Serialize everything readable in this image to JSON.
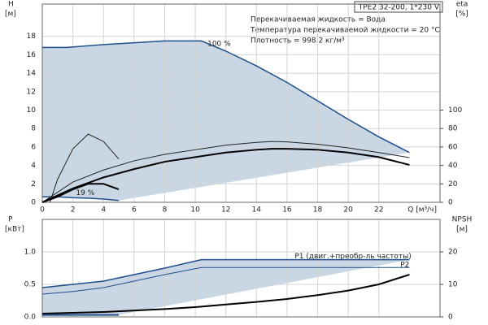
{
  "chart_data": [
    {
      "type": "line",
      "model": "TPE2 32-200, 1*230 V",
      "notes": [
        "Перекачиваемая жидкость = Вода",
        "Температура перекачиваемой жидкости = 20 °C",
        "Плотность = 998.2 кг/м³"
      ],
      "ylabel": "H",
      "yunit": "[м]",
      "y2label": "eta",
      "y2unit": "[%]",
      "xlabel": "Q [м³/ч]",
      "xlim": [
        0,
        26
      ],
      "xticks": [
        0,
        2,
        4,
        6,
        8,
        10,
        12,
        14,
        16,
        18,
        20,
        22
      ],
      "ylim": [
        0,
        21.5
      ],
      "yticks": [
        0,
        2,
        4,
        6,
        8,
        10,
        12,
        14,
        16,
        18
      ],
      "y2lim": [
        0,
        215
      ],
      "y2ticks": [
        0,
        20,
        40,
        60,
        80,
        100
      ],
      "grid": true,
      "fill": "#c9d6e3",
      "series": [
        {
          "name": "100 %",
          "color": "#1f4e8c",
          "line_width": 1.5,
          "x": [
            0,
            1.6,
            4,
            6,
            8,
            10.4,
            12,
            14,
            16,
            18,
            20,
            22,
            24
          ],
          "values": [
            16.8,
            16.8,
            17.1,
            17.3,
            17.5,
            17.5,
            16.4,
            14.8,
            13,
            11,
            9,
            7.1,
            5.4
          ]
        },
        {
          "name": "19 %",
          "color": "#1f4e8c",
          "line_width": 1.5,
          "x": [
            0,
            1,
            2,
            3,
            4,
            5
          ],
          "values": [
            0.6,
            0.6,
            0.5,
            0.45,
            0.35,
            0.2
          ]
        },
        {
          "color": "#222222",
          "line_width": 1,
          "axis": "y2",
          "x": [
            0,
            2,
            4,
            6,
            8,
            10,
            12,
            14,
            15,
            16,
            18,
            20,
            22,
            24
          ],
          "values": [
            0,
            22,
            35,
            45,
            52,
            57,
            62,
            65,
            66,
            65.5,
            63,
            59,
            54,
            48.5
          ]
        },
        {
          "color": "#000000",
          "line_width": 2,
          "axis": "y2",
          "x": [
            0,
            2,
            4,
            6,
            8,
            10,
            12,
            14,
            15,
            16,
            18,
            20,
            22,
            24
          ],
          "values": [
            0,
            15,
            27,
            36,
            44,
            49,
            54,
            57,
            58,
            58,
            57,
            54,
            49,
            40.6
          ]
        },
        {
          "color": "#222222",
          "line_width": 1,
          "axis": "y2",
          "x": [
            0.5,
            1,
            2,
            3,
            4,
            5
          ],
          "values": [
            0,
            25,
            58,
            74,
            66,
            47
          ]
        },
        {
          "color": "#000000",
          "line_width": 2,
          "axis": "y2",
          "x": [
            0,
            1,
            2,
            3,
            4,
            5
          ],
          "values": [
            0,
            6,
            14,
            20,
            20,
            14
          ]
        }
      ]
    },
    {
      "type": "line",
      "ylabel": "P",
      "yunit": "[кВт]",
      "y2label": "NPSH",
      "y2unit": "[м]",
      "xlim": [
        0,
        26
      ],
      "xticks": [
        0,
        2,
        4,
        6,
        8,
        10,
        12,
        14,
        16,
        18,
        20,
        22
      ],
      "ylim": [
        0,
        1.5
      ],
      "yticks": [
        {
          "value": 0,
          "label": "0.0"
        },
        {
          "value": 0.5,
          "label": "0.5"
        },
        {
          "value": 1,
          "label": "1.0"
        }
      ],
      "y2lim": [
        0,
        30
      ],
      "y2ticks": [
        0,
        10,
        20
      ],
      "grid": true,
      "fill": "#c9d6e3",
      "series": [
        {
          "name": "P1 (двиг.+преобр-ль частоты)",
          "color": "#1f4e8c",
          "line_width": 1.5,
          "x": [
            0,
            2,
            4,
            6,
            8,
            10.4,
            24
          ],
          "values": [
            0.45,
            0.5,
            0.55,
            0.65,
            0.75,
            0.88,
            0.88
          ]
        },
        {
          "name": "P2",
          "color": "#1f4e8c",
          "line_width": 1,
          "x": [
            0,
            2,
            4,
            6,
            8,
            10.4,
            24
          ],
          "values": [
            0.35,
            0.39,
            0.45,
            0.55,
            0.65,
            0.76,
            0.76
          ]
        },
        {
          "color": "#000000",
          "line_width": 2,
          "axis": "y2",
          "x": [
            0,
            4,
            8,
            10,
            12,
            14,
            16,
            18,
            20,
            22,
            24
          ],
          "values": [
            1,
            1.5,
            2.4,
            3,
            3.8,
            4.6,
            5.5,
            6.7,
            8.1,
            10,
            13
          ]
        },
        {
          "color": "#1f4e8c",
          "line_width": 2,
          "x": [
            0,
            5
          ],
          "values": [
            0.03,
            0.03
          ]
        }
      ]
    }
  ]
}
